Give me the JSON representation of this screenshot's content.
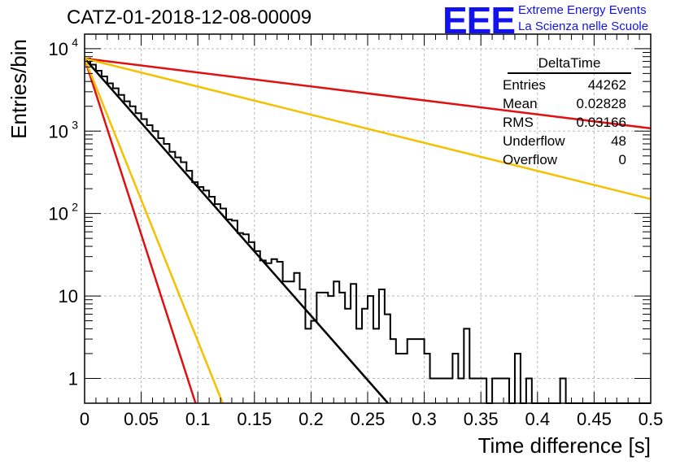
{
  "title": "CATZ-01-2018-12-08-00009",
  "logo": {
    "mark": "EEE",
    "line1": "Extreme Energy Events",
    "line2": "La Scienza nelle Scuole",
    "color": "#1212ee"
  },
  "stats": {
    "title": "DeltaTime",
    "rows": [
      {
        "label": "Entries",
        "value": "44262"
      },
      {
        "label": "Mean",
        "value": "0.02828"
      },
      {
        "label": "RMS",
        "value": "0.03166"
      },
      {
        "label": "Underflow",
        "value": "48"
      },
      {
        "label": "Overflow",
        "value": "0"
      }
    ]
  },
  "chart_data": {
    "type": "line",
    "title": "CATZ-01-2018-12-08-00009",
    "xlabel": "Time difference [s]",
    "ylabel": "Entries/bin",
    "xlim": [
      0,
      0.5
    ],
    "ylim": [
      0.5,
      15000
    ],
    "yscale": "log",
    "grid": true,
    "x_ticks": [
      "0",
      "0.05",
      "0.1",
      "0.15",
      "0.2",
      "0.25",
      "0.3",
      "0.35",
      "0.4",
      "0.45",
      "0.5"
    ],
    "y_ticks": [
      {
        "value": 1,
        "label": "1",
        "sup": ""
      },
      {
        "value": 10,
        "label": "10",
        "sup": ""
      },
      {
        "value": 100,
        "label": "10",
        "sup": "2"
      },
      {
        "value": 1000,
        "label": "10",
        "sup": "3"
      },
      {
        "value": 10000,
        "label": "10",
        "sup": "4"
      }
    ],
    "histogram": {
      "bin_width": 0.005,
      "color": "#000000",
      "values": [
        7600,
        6400,
        5400,
        4600,
        3800,
        3300,
        2750,
        2300,
        2000,
        1650,
        1400,
        1180,
        1000,
        820,
        700,
        560,
        480,
        420,
        330,
        240,
        210,
        190,
        160,
        130,
        115,
        85,
        82,
        58,
        56,
        45,
        35,
        27,
        25,
        28,
        26,
        15,
        15,
        19,
        12,
        4,
        5,
        11,
        11,
        10,
        15,
        11,
        7,
        14,
        4,
        7,
        10,
        4,
        12,
        6,
        3,
        2,
        2,
        3,
        3,
        3,
        2,
        1,
        1,
        1,
        1,
        2,
        1,
        4,
        1,
        1,
        1,
        0,
        1,
        1,
        1,
        0,
        2,
        0,
        1,
        0,
        0,
        0,
        0,
        0,
        1,
        0,
        0,
        0,
        0,
        0,
        0,
        0,
        0,
        0,
        0,
        0,
        0,
        0,
        0,
        0
      ]
    },
    "series": [
      {
        "color": "#000000",
        "x": [
          0,
          0.268
        ],
        "y": [
          7600,
          0.5
        ]
      },
      {
        "color": "#e01010",
        "x": [
          0,
          0.098
        ],
        "y": [
          7600,
          0.5
        ]
      },
      {
        "color": "#f5c000",
        "x": [
          0,
          0.122
        ],
        "y": [
          7600,
          0.5
        ]
      },
      {
        "color": "#e01010",
        "x": [
          0,
          0.5
        ],
        "y": [
          7600,
          1080
        ]
      },
      {
        "color": "#f5c000",
        "x": [
          0,
          0.5
        ],
        "y": [
          7600,
          150
        ]
      }
    ]
  }
}
